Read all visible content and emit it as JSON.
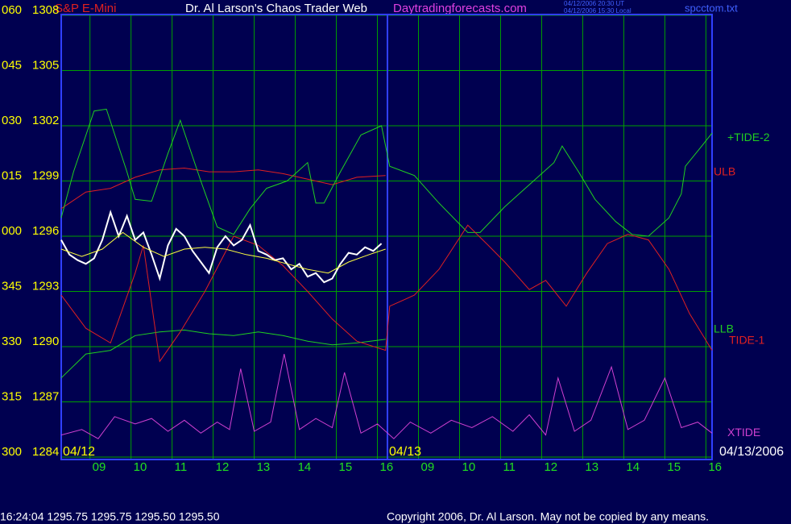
{
  "header": {
    "instrument": "S&P E-Mini",
    "title": "Dr. Al Larson's Chaos Trader Web",
    "site": "Daytradingforecasts.com",
    "time_ut": "04/12/2006 20:30 UT",
    "time_local": "04/12/2006 15:30 Local",
    "file": "spcctom.txt"
  },
  "chart_data": {
    "type": "line",
    "date_labels": [
      "04/12",
      "04/13",
      "04/13/2006"
    ],
    "angle_labels": [
      "060",
      "045",
      "030",
      "015",
      "000",
      "345",
      "330",
      "315",
      "300"
    ],
    "ylim": [
      1284,
      1308
    ],
    "yticks": [
      1308,
      1305,
      1302,
      1299,
      1296,
      1293,
      1290,
      1287,
      1284
    ],
    "xlim": [
      0,
      15.85
    ],
    "xticks": [
      {
        "value": 0.7,
        "label": "09"
      },
      {
        "value": 1.7,
        "label": "10"
      },
      {
        "value": 2.7,
        "label": "11"
      },
      {
        "value": 3.7,
        "label": "12"
      },
      {
        "value": 4.7,
        "label": "13"
      },
      {
        "value": 5.7,
        "label": "14"
      },
      {
        "value": 6.7,
        "label": "15"
      },
      {
        "value": 7.7,
        "label": "16"
      },
      {
        "value": 8.7,
        "label": "09"
      },
      {
        "value": 9.7,
        "label": "10"
      },
      {
        "value": 10.7,
        "label": "11"
      },
      {
        "value": 11.7,
        "label": "12"
      },
      {
        "value": 12.7,
        "label": "13"
      },
      {
        "value": 13.7,
        "label": "14"
      },
      {
        "value": 14.7,
        "label": "15"
      },
      {
        "value": 15.7,
        "label": "16"
      }
    ],
    "grid": true,
    "series": [
      {
        "name": "ULB",
        "color": "#e02020",
        "x": [
          0,
          0.6,
          1.2,
          1.8,
          2.4,
          3.0,
          3.6,
          4.2,
          4.8,
          5.4,
          6.0,
          6.6,
          7.2,
          7.9
        ],
        "values": [
          1297.5,
          1298.4,
          1298.6,
          1299.2,
          1299.6,
          1299.7,
          1299.5,
          1299.5,
          1299.6,
          1299.4,
          1299.1,
          1298.8,
          1299.2,
          1299.3
        ]
      },
      {
        "name": "+TIDE-2",
        "color": "#20d020",
        "x": [
          0,
          0.3,
          0.8,
          1.1,
          1.6,
          1.8,
          2.2,
          2.6,
          2.9,
          3.4,
          3.8,
          4.2,
          4.6,
          5.0,
          5.5,
          6.0,
          6.2,
          6.4,
          6.8,
          7.3,
          7.8,
          8.0,
          8.6,
          9.2,
          9.9,
          10.2,
          10.8,
          11.3,
          12.0,
          12.2,
          12.6,
          13.0,
          13.5,
          13.9,
          14.3,
          14.8,
          15.1,
          15.2,
          15.6,
          15.85
        ],
        "values": [
          1297.0,
          1299.5,
          1302.8,
          1302.9,
          1299.5,
          1298.0,
          1297.9,
          1300.5,
          1302.3,
          1299.0,
          1296.5,
          1296.1,
          1297.5,
          1298.6,
          1299.0,
          1300.0,
          1297.8,
          1297.8,
          1299.5,
          1301.5,
          1302.0,
          1299.8,
          1299.3,
          1297.8,
          1296.2,
          1296.2,
          1297.6,
          1298.6,
          1300.0,
          1300.9,
          1299.5,
          1298.0,
          1296.8,
          1296.1,
          1296.0,
          1297.0,
          1298.3,
          1299.8,
          1300.9,
          1301.6
        ]
      },
      {
        "name": "LLB",
        "color": "#20d020",
        "x": [
          0,
          0.6,
          1.2,
          1.8,
          2.4,
          3.0,
          3.6,
          4.2,
          4.8,
          5.4,
          6.0,
          6.6,
          7.2,
          7.9
        ],
        "values": [
          1288.3,
          1289.6,
          1289.8,
          1290.6,
          1290.8,
          1290.9,
          1290.7,
          1290.6,
          1290.8,
          1290.6,
          1290.3,
          1290.1,
          1290.2,
          1290.4
        ]
      },
      {
        "name": "TIDE-1",
        "color": "#e02020",
        "x": [
          0,
          0.6,
          1.2,
          1.8,
          2.0,
          2.4,
          2.9,
          3.5,
          4.2,
          4.8,
          5.4,
          6.0,
          6.6,
          7.2,
          7.9,
          8.0,
          8.6,
          9.2,
          9.9,
          10.4,
          10.8,
          11.4,
          11.8,
          12.3,
          12.8,
          13.3,
          13.8,
          14.3,
          14.8,
          15.3,
          15.85
        ],
        "values": [
          1292.8,
          1291.0,
          1290.2,
          1294.0,
          1295.5,
          1289.2,
          1290.8,
          1293.0,
          1296.0,
          1295.5,
          1294.4,
          1293.0,
          1291.5,
          1290.3,
          1289.8,
          1292.2,
          1292.8,
          1294.2,
          1296.6,
          1295.5,
          1294.6,
          1293.1,
          1293.6,
          1292.2,
          1294.0,
          1295.6,
          1296.1,
          1295.8,
          1294.2,
          1291.8,
          1289.8
        ]
      },
      {
        "name": "XTIDE",
        "color": "#d040d0",
        "x": [
          0,
          0.5,
          0.9,
          1.3,
          1.8,
          2.2,
          2.6,
          3.0,
          3.4,
          3.8,
          4.1,
          4.37,
          4.7,
          5.1,
          5.43,
          5.8,
          6.2,
          6.6,
          6.9,
          7.3,
          7.7,
          8.1,
          8.5,
          9.0,
          9.5,
          10.0,
          10.5,
          11.0,
          11.4,
          11.8,
          12.1,
          12.5,
          12.9,
          13.4,
          13.8,
          14.2,
          14.7,
          15.1,
          15.5,
          15.85
        ],
        "values": [
          1285.2,
          1285.5,
          1285.0,
          1286.2,
          1285.8,
          1286.1,
          1285.4,
          1286.0,
          1285.3,
          1285.9,
          1285.5,
          1288.8,
          1285.4,
          1285.9,
          1289.6,
          1285.5,
          1286.1,
          1285.6,
          1288.6,
          1285.3,
          1285.8,
          1285.0,
          1285.9,
          1285.3,
          1286.0,
          1285.6,
          1286.2,
          1285.4,
          1286.3,
          1285.2,
          1288.3,
          1285.4,
          1286.0,
          1288.9,
          1285.5,
          1286.0,
          1288.3,
          1285.6,
          1285.9,
          1285.3
        ]
      },
      {
        "color": "#ffffff",
        "x": [
          0,
          0.2,
          0.4,
          0.6,
          0.8,
          1.0,
          1.2,
          1.4,
          1.6,
          1.8,
          2.0,
          2.2,
          2.4,
          2.6,
          2.8,
          3.0,
          3.2,
          3.4,
          3.6,
          3.8,
          4.0,
          4.2,
          4.4,
          4.6,
          4.8,
          5.0,
          5.2,
          5.4,
          5.6,
          5.8,
          6.0,
          6.2,
          6.4,
          6.6,
          6.8,
          7.0,
          7.2,
          7.4,
          7.6,
          7.8
        ],
        "values": [
          1295.8,
          1295.0,
          1294.7,
          1294.5,
          1294.8,
          1295.8,
          1297.3,
          1296.0,
          1297.1,
          1295.8,
          1296.2,
          1295.0,
          1293.7,
          1295.5,
          1296.4,
          1296.0,
          1295.2,
          1294.6,
          1294.0,
          1295.4,
          1296.0,
          1295.5,
          1295.8,
          1296.6,
          1295.2,
          1295.0,
          1294.7,
          1294.8,
          1294.2,
          1294.5,
          1293.8,
          1294.0,
          1293.5,
          1293.7,
          1294.5,
          1295.1,
          1295.0,
          1295.4,
          1295.2,
          1295.6
        ]
      },
      {
        "color": "#ffff40",
        "x": [
          0,
          0.5,
          1,
          1.5,
          2,
          2.5,
          3,
          3.5,
          4,
          4.5,
          5,
          5.5,
          6,
          6.5,
          7,
          7.5,
          7.9
        ],
        "values": [
          1295.3,
          1294.9,
          1295.3,
          1296.2,
          1295.4,
          1294.9,
          1295.3,
          1295.4,
          1295.3,
          1295.0,
          1294.8,
          1294.5,
          1294.2,
          1294.0,
          1294.6,
          1295.0,
          1295.3
        ]
      }
    ]
  },
  "footer": {
    "status": "16:24:04  1295.75 1295.75 1295.50 1295.50",
    "copyright": "Copyright 2006, Dr. Al Larson. May not be copied by any means."
  }
}
